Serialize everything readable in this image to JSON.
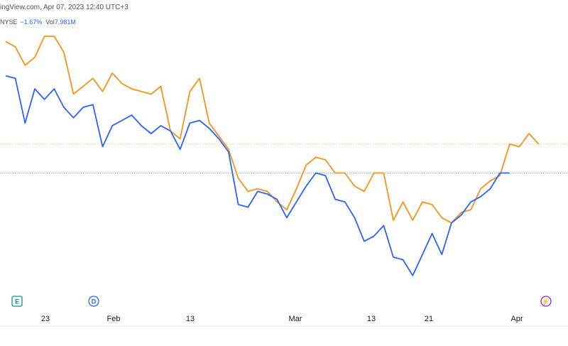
{
  "header": {
    "source_date": "ingView.com, Apr 07, 2023 12:40 UTC+3",
    "exchange": "NYSE",
    "change": "−1.67%",
    "volume_label": "Vol",
    "volume_value": "7.981M"
  },
  "colors": {
    "series_a": "#2962ff",
    "series_b": "#f7931a",
    "axis_text": "#131722",
    "marker_e": "#089981",
    "marker_d": "#2962ff",
    "marker_flash": "#9c27b0",
    "price_line": "#2962ff"
  },
  "markers": [
    {
      "type": "E",
      "icon": "earnings-icon",
      "label": "E"
    },
    {
      "type": "D",
      "icon": "dividend-icon",
      "label": "D"
    },
    {
      "type": "flash",
      "icon": "lightning-icon",
      "label": "⚡"
    }
  ],
  "chart_data": {
    "type": "line",
    "title": "",
    "xlabel": "",
    "ylabel": "",
    "x_ticks": [
      "23",
      "Feb",
      "13",
      "Mar",
      "13",
      "21",
      "Apr"
    ],
    "y_axis_visible": false,
    "ylim": [
      0,
      100
    ],
    "grid": false,
    "series": [
      {
        "color": "#2962ff",
        "values": [
          82,
          81,
          64,
          77,
          73,
          77,
          70,
          66,
          70,
          71,
          55,
          63,
          65,
          67,
          63,
          60,
          63,
          61,
          54,
          64,
          65,
          62,
          58,
          53,
          33,
          32,
          38,
          37,
          35,
          28,
          34,
          40,
          45,
          44,
          35,
          34,
          28,
          19,
          21,
          25,
          13,
          12,
          6,
          14,
          22,
          14,
          26,
          29,
          34,
          36,
          39,
          45,
          45
        ]
      },
      {
        "color": "#f7931a",
        "values": [
          95,
          93,
          86,
          89,
          97,
          97,
          91,
          75,
          78,
          81,
          76,
          83,
          79,
          77,
          76,
          75,
          78,
          61,
          58,
          76,
          81,
          64,
          59,
          54,
          43,
          38,
          39,
          38,
          34,
          31,
          39,
          48,
          51,
          50,
          45,
          45,
          40,
          38,
          45,
          45,
          27,
          34,
          27,
          34,
          33,
          28,
          26,
          30,
          31,
          39,
          42,
          44,
          56,
          55,
          60,
          56
        ]
      }
    ]
  }
}
